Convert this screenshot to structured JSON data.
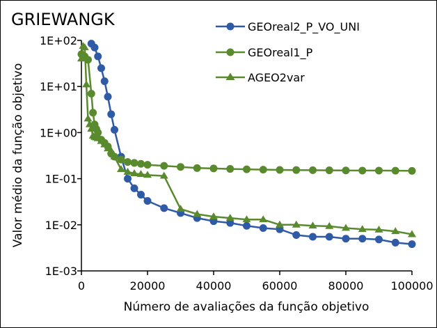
{
  "chart_data": {
    "type": "line",
    "title": "GRIEWANGK",
    "xlabel": "Número de avaliações da função objetivo",
    "ylabel": "Valor médio da função objetivo",
    "xlim": [
      0,
      100000
    ],
    "ylim": [
      0.001,
      100
    ],
    "yscale": "log",
    "grid": false,
    "legend": "top-right",
    "x_ticks": [
      0,
      20000,
      40000,
      60000,
      80000,
      100000
    ],
    "x_tick_labels": [
      "0",
      "20000",
      "40000",
      "60000",
      "80000",
      "100000"
    ],
    "y_ticks": [
      0.001,
      0.01,
      0.1,
      1,
      10,
      100
    ],
    "y_tick_labels": [
      "1E-03",
      "1E-02",
      "1E-01",
      "1E+00",
      "1E+01",
      "1E+02"
    ],
    "series": [
      {
        "name": "GEOreal2_P_VO_UNI",
        "color": "#2E5AA6",
        "marker": "circle",
        "x": [
          3000,
          4000,
          5000,
          6000,
          7000,
          8000,
          9000,
          10000,
          12000,
          14000,
          16000,
          18000,
          20000,
          25000,
          30000,
          35000,
          40000,
          45000,
          50000,
          55000,
          60000,
          65000,
          70000,
          75000,
          80000,
          85000,
          90000,
          95000,
          100000
        ],
        "y": [
          85,
          70,
          45,
          25,
          13,
          6,
          2.5,
          1.15,
          0.3,
          0.1,
          0.062,
          0.045,
          0.033,
          0.023,
          0.018,
          0.014,
          0.012,
          0.011,
          0.0095,
          0.0085,
          0.008,
          0.006,
          0.0055,
          0.0055,
          0.005,
          0.005,
          0.0048,
          0.0041,
          0.0038
        ]
      },
      {
        "name": "GEOreal1_P",
        "color": "#5A8A2E",
        "marker": "circle",
        "x": [
          0,
          1000,
          2000,
          3000,
          3500,
          4000,
          4500,
          5000,
          6000,
          7000,
          8000,
          9000,
          10000,
          12000,
          14000,
          16000,
          18000,
          20000,
          25000,
          30000,
          35000,
          40000,
          45000,
          50000,
          55000,
          60000,
          65000,
          70000,
          75000,
          80000,
          85000,
          90000,
          95000,
          100000
        ],
        "y": [
          50,
          45,
          38,
          7,
          2.7,
          1.5,
          1.2,
          1.0,
          0.7,
          0.6,
          0.5,
          0.35,
          0.3,
          0.26,
          0.23,
          0.22,
          0.21,
          0.2,
          0.19,
          0.18,
          0.17,
          0.167,
          0.163,
          0.16,
          0.157,
          0.155,
          0.154,
          0.153,
          0.152,
          0.151,
          0.15,
          0.15,
          0.149,
          0.148
        ]
      },
      {
        "name": "AGEO2var",
        "color": "#5A8A2E",
        "marker": "triangle",
        "x": [
          0,
          500,
          1000,
          1500,
          2000,
          2500,
          3000,
          3500,
          4000,
          4500,
          5000,
          6000,
          7000,
          8000,
          9000,
          10000,
          12000,
          14000,
          16000,
          18000,
          20000,
          25000,
          30000,
          35000,
          40000,
          45000,
          50000,
          55000,
          60000,
          65000,
          70000,
          75000,
          80000,
          85000,
          90000,
          95000,
          100000
        ],
        "y": [
          40,
          75,
          70,
          11,
          2.0,
          1.5,
          1.2,
          0.85,
          0.8,
          0.78,
          0.75,
          0.65,
          0.55,
          0.45,
          0.4,
          0.3,
          0.16,
          0.14,
          0.13,
          0.125,
          0.12,
          0.115,
          0.022,
          0.017,
          0.015,
          0.014,
          0.013,
          0.013,
          0.01,
          0.01,
          0.0095,
          0.0093,
          0.0085,
          0.008,
          0.0078,
          0.0072,
          0.0062
        ]
      }
    ]
  }
}
